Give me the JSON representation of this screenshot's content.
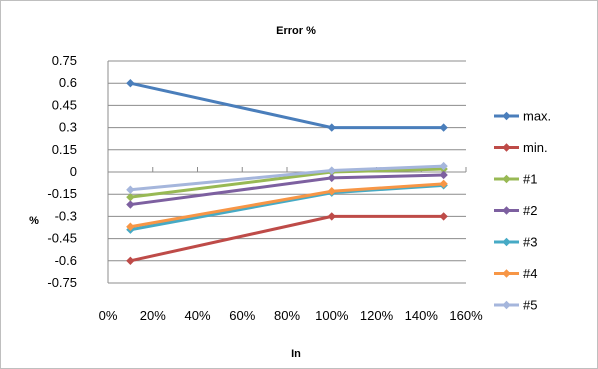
{
  "chart_data": {
    "type": "line",
    "title": "Error %",
    "xlabel": "In",
    "ylabel": "%",
    "x": [
      0.1,
      1.0,
      1.5
    ],
    "xlim": [
      0,
      1.6
    ],
    "ylim": [
      -0.75,
      0.75
    ],
    "xticks": [
      0,
      0.2,
      0.4,
      0.6,
      0.8,
      1.0,
      1.2,
      1.4,
      1.6
    ],
    "xtick_labels": [
      "0%",
      "20%",
      "40%",
      "60%",
      "80%",
      "100%",
      "120%",
      "140%",
      "160%"
    ],
    "yticks": [
      -0.75,
      -0.6,
      -0.45,
      -0.3,
      -0.15,
      0,
      0.15,
      0.3,
      0.45,
      0.6,
      0.75
    ],
    "ytick_labels": [
      "-0.75",
      "-0.6",
      "-0.45",
      "-0.3",
      "-0.15",
      "0",
      "0.15",
      "0.3",
      "0.45",
      "0.6",
      "0.75"
    ],
    "grid": true,
    "legend": "right",
    "series": [
      {
        "name": "max.",
        "color": "#4a7ebb",
        "values": [
          0.6,
          0.3,
          0.3
        ]
      },
      {
        "name": "min.",
        "color": "#be4b48",
        "values": [
          -0.6,
          -0.3,
          -0.3
        ]
      },
      {
        "name": "#1",
        "color": "#98b954",
        "values": [
          -0.17,
          0.0,
          0.02
        ]
      },
      {
        "name": "#2",
        "color": "#7d60a0",
        "values": [
          -0.22,
          -0.04,
          -0.02
        ]
      },
      {
        "name": "#3",
        "color": "#46aac5",
        "values": [
          -0.39,
          -0.14,
          -0.09
        ]
      },
      {
        "name": "#4",
        "color": "#f79646",
        "values": [
          -0.37,
          -0.13,
          -0.08
        ]
      },
      {
        "name": "#5",
        "color": "#a5b6dc",
        "values": [
          -0.12,
          0.01,
          0.04
        ]
      }
    ]
  }
}
